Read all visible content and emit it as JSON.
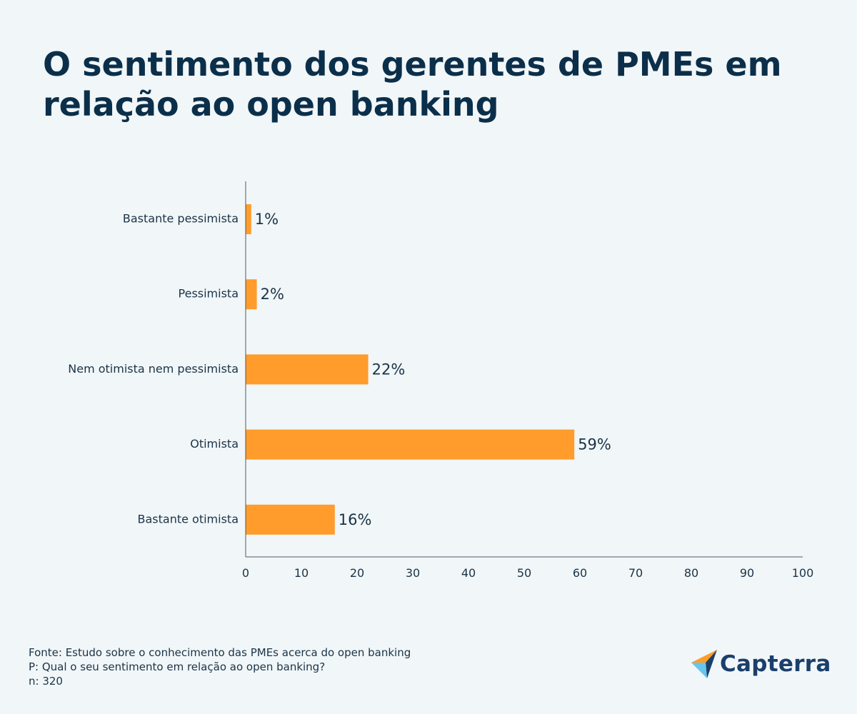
{
  "title": "O sentimento dos gerentes de PMEs em relação ao open banking",
  "chart_data": {
    "type": "bar",
    "orientation": "horizontal",
    "categories": [
      "Bastante pessimista",
      "Pessimista",
      "Nem otimista nem pessimista",
      "Otimista",
      "Bastante otimista"
    ],
    "values": [
      1,
      2,
      22,
      59,
      16
    ],
    "value_labels": [
      "1%",
      "2%",
      "22%",
      "59%",
      "16%"
    ],
    "xlim": [
      0,
      100
    ],
    "xticks": [
      0,
      10,
      20,
      30,
      40,
      50,
      60,
      70,
      80,
      90,
      100
    ],
    "grid": false,
    "bar_color": "#ff9c2c"
  },
  "footer": {
    "source": "Fonte: Estudo sobre o conhecimento das PMEs acerca do open banking",
    "question": "P: Qual o seu sentimento em relação ao open banking?",
    "sample": "n: 320"
  },
  "logo": {
    "text": "Capterra",
    "icon": "capterra-arrow-icon"
  },
  "colors": {
    "background": "#f1f6f8",
    "title": "#0b2f4a",
    "bar": "#ff9c2c",
    "axis": "#4a5a66"
  }
}
